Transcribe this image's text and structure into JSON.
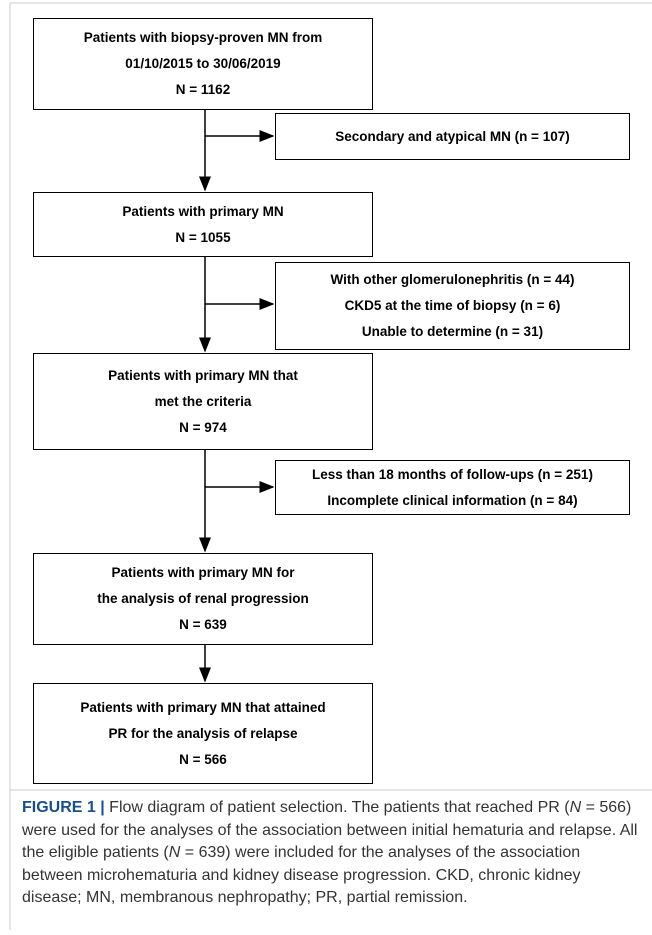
{
  "main_boxes": [
    {
      "lines": [
        "Patients with biopsy-proven MN from",
        "01/10/2015 to 30/06/2019",
        "N = 1162"
      ]
    },
    {
      "lines": [
        "Patients with primary MN",
        "N = 1055"
      ]
    },
    {
      "lines": [
        "Patients with primary MN that",
        "met the criteria",
        "N = 974"
      ]
    },
    {
      "lines": [
        "Patients with primary MN for",
        "the analysis of renal progression",
        "N = 639"
      ]
    },
    {
      "lines": [
        "Patients with primary MN that attained",
        "PR for the analysis of relapse",
        "N = 566"
      ]
    }
  ],
  "side_boxes": [
    {
      "lines": [
        "Secondary and atypical MN (n = 107)"
      ]
    },
    {
      "lines": [
        "With other glomerulonephritis (n = 44)",
        "CKD5 at the time of biopsy (n = 6)",
        "Unable to determine (n = 31)"
      ]
    },
    {
      "lines": [
        "Less than 18 months of follow-ups (n = 251)",
        "Incomplete clinical information (n = 84)"
      ]
    }
  ],
  "caption": {
    "label": "FIGURE 1 |",
    "segments": [
      " Flow diagram of patient selection. The patients that reached PR (",
      "N",
      " = 566) were used for the analyses of the association between initial hematuria and relapse. All the eligible patients (",
      "N",
      " = 639) were included for the analyses of the association between microhematuria and kidney disease progression. CKD, chronic kidney disease; MN, membranous nephropathy; PR, partial remission."
    ]
  }
}
